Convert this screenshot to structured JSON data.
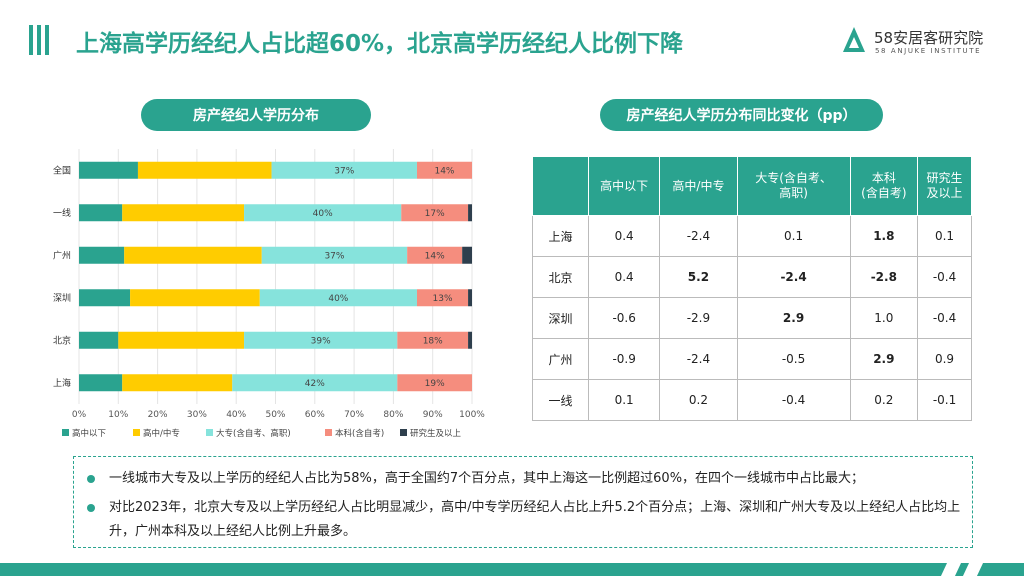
{
  "header": {
    "title": "上海高学历经纪人占比超60%，北京高学历经纪人比例下降",
    "logo_cn": "58安居客研究院",
    "logo_en": "58 ANJUKE INSTITUTE",
    "accent": "#2aa38f"
  },
  "left_title": "房产经纪人学历分布",
  "right_title": "房产经纪人学历分布同比变化（pp）",
  "chart_data": {
    "type": "bar",
    "orientation": "horizontal",
    "stacked": true,
    "categories": [
      "全国",
      "一线",
      "广州",
      "深圳",
      "北京",
      "上海"
    ],
    "series": [
      {
        "name": "高中以下",
        "color": "#2aa38f",
        "values": [
          15,
          11,
          11.5,
          13,
          10,
          11
        ]
      },
      {
        "name": "高中/中专",
        "color": "#ffcc00",
        "values": [
          34,
          31,
          35,
          33,
          32,
          28
        ]
      },
      {
        "name": "大专(含自考、高职)",
        "color": "#86e3dc",
        "values": [
          37,
          40,
          37,
          40,
          39,
          42
        ]
      },
      {
        "name": "本科(含自考)",
        "color": "#f58d7e",
        "values": [
          14,
          17,
          14,
          13,
          18,
          19
        ]
      },
      {
        "name": "研究生及以上",
        "color": "#2e3f4d",
        "values": [
          0,
          1,
          2.5,
          1,
          1,
          0
        ]
      }
    ],
    "data_labels": {
      "大专(含自考、高职)": [
        "37%",
        "40%",
        "37%",
        "40%",
        "39%",
        "42%"
      ],
      "本科(含自考)": [
        "14%",
        "17%",
        "14%",
        "13%",
        "18%",
        "19%"
      ]
    },
    "xlim": [
      0,
      100
    ],
    "xticks": [
      "0%",
      "10%",
      "20%",
      "30%",
      "40%",
      "50%",
      "60%",
      "70%",
      "80%",
      "90%",
      "100%"
    ],
    "grid": true,
    "legend": "bottom"
  },
  "change_table": {
    "headers": [
      "",
      "高中以下",
      "高中/中专",
      "大专(含自考、\n高职)",
      "本科\n(含自考)",
      "研究生\n及以上"
    ],
    "rows": [
      {
        "label": "上海",
        "cells": [
          "0.4",
          "-2.4",
          "0.1",
          "1.8",
          "0.1"
        ],
        "bold": [
          false,
          false,
          false,
          true,
          false
        ]
      },
      {
        "label": "北京",
        "cells": [
          "0.4",
          "5.2",
          "-2.4",
          "-2.8",
          "-0.4"
        ],
        "bold": [
          false,
          true,
          true,
          true,
          false
        ]
      },
      {
        "label": "深圳",
        "cells": [
          "-0.6",
          "-2.9",
          "2.9",
          "1.0",
          "-0.4"
        ],
        "bold": [
          false,
          false,
          true,
          false,
          false
        ]
      },
      {
        "label": "广州",
        "cells": [
          "-0.9",
          "-2.4",
          "-0.5",
          "2.9",
          "0.9"
        ],
        "bold": [
          false,
          false,
          false,
          true,
          false
        ]
      },
      {
        "label": "一线",
        "cells": [
          "0.1",
          "0.2",
          "-0.4",
          "0.2",
          "-0.1"
        ],
        "bold": [
          false,
          false,
          false,
          false,
          false
        ]
      }
    ]
  },
  "notes": [
    "一线城市大专及以上学历的经纪人占比为58%，高于全国约7个百分点，其中上海这一比例超过60%，在四个一线城市中占比最大；",
    "对比2023年，北京大专及以上学历经纪人占比明显减少，高中/中专学历经纪人占比上升5.2个百分点；上海、深圳和广州大专及以上经纪人占比均上升，广州本科及以上经纪人比例上升最多。"
  ]
}
